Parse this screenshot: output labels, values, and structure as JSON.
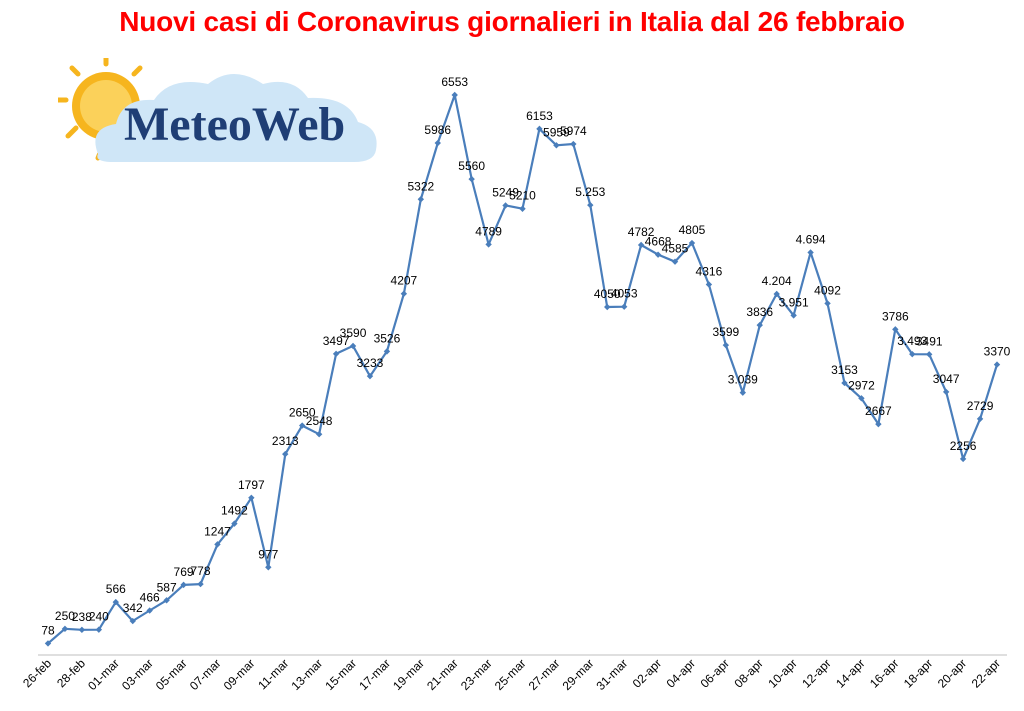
{
  "colors": {
    "title": "#ff0000",
    "series": "#4a7ebb",
    "logo_text": "#1f3e75",
    "sun": "#f6b51e",
    "cloud": "#cfe6f7"
  },
  "logo": {
    "text": "MeteoWeb",
    "icon": "sun-cloud-icon"
  },
  "chart_data": {
    "type": "line",
    "title": "Nuovi casi di Coronavirus giornalieri in Italia dal 26 febbraio",
    "xlabel": "",
    "ylabel": "",
    "grid": false,
    "legend": "none",
    "x": [
      "26-feb",
      "27-feb",
      "28-feb",
      "29-feb",
      "01-mar",
      "02-mar",
      "03-mar",
      "04-mar",
      "05-mar",
      "06-mar",
      "07-mar",
      "08-mar",
      "09-mar",
      "10-mar",
      "11-mar",
      "12-mar",
      "13-mar",
      "14-mar",
      "15-mar",
      "16-mar",
      "17-mar",
      "18-mar",
      "19-mar",
      "20-mar",
      "21-mar",
      "22-mar",
      "23-mar",
      "24-mar",
      "25-mar",
      "26-mar",
      "27-mar",
      "28-mar",
      "29-mar",
      "30-mar",
      "31-mar",
      "01-apr",
      "02-apr",
      "03-apr",
      "04-apr",
      "05-apr",
      "06-apr",
      "07-apr",
      "08-apr",
      "09-apr",
      "10-apr",
      "11-apr",
      "12-apr",
      "13-apr",
      "14-apr",
      "15-apr",
      "16-apr",
      "17-apr",
      "18-apr",
      "19-apr",
      "20-apr",
      "21-apr",
      "22-apr"
    ],
    "x_tick_labels": [
      "26-feb",
      "28-feb",
      "01-mar",
      "03-mar",
      "05-mar",
      "07-mar",
      "09-mar",
      "11-mar",
      "13-mar",
      "15-mar",
      "17-mar",
      "19-mar",
      "21-mar",
      "23-mar",
      "25-mar",
      "27-mar",
      "29-mar",
      "31-mar",
      "02-apr",
      "04-apr",
      "06-apr",
      "08-apr",
      "10-apr",
      "12-apr",
      "14-apr",
      "16-apr",
      "18-apr",
      "20-apr",
      "22-apr"
    ],
    "series": [
      {
        "values": [
          78,
          250,
          238,
          240,
          566,
          342,
          466,
          587,
          769,
          778,
          1247,
          1492,
          1797,
          977,
          2313,
          2650,
          2548,
          3497,
          3590,
          3233,
          3526,
          4207,
          5322,
          5986,
          6553,
          5560,
          4789,
          5249,
          5210,
          6153,
          5959,
          5974,
          5253,
          4050,
          4053,
          4782,
          4668,
          4585,
          4805,
          4316,
          3599,
          3039,
          3836,
          4204,
          3951,
          4694,
          4092,
          3153,
          2972,
          2667,
          3786,
          3493,
          3491,
          3047,
          2256,
          2729,
          3370
        ]
      }
    ],
    "data_labels": [
      "78",
      "250",
      "238",
      "240",
      "566",
      "342",
      "466",
      "587",
      "769",
      "778",
      "1247",
      "1492",
      "1797",
      "977",
      "2313",
      "2650",
      "2548",
      "3497",
      "3590",
      "3233",
      "3526",
      "4207",
      "5322",
      "5986",
      "6553",
      "5560",
      "4789",
      "5249",
      "5210",
      "6153",
      "5959",
      "5974",
      "5.253",
      "4050",
      "4053",
      "4782",
      "4668",
      "4585",
      "4805",
      "4316",
      "3599",
      "3.039",
      "3836",
      "4.204",
      "3.951",
      "4.694",
      "4092",
      "3153",
      "2972",
      "2667",
      "3786",
      "3.493",
      "3491",
      "3047",
      "2256",
      "2729",
      "3370"
    ],
    "ylim": [
      0,
      6800
    ]
  }
}
